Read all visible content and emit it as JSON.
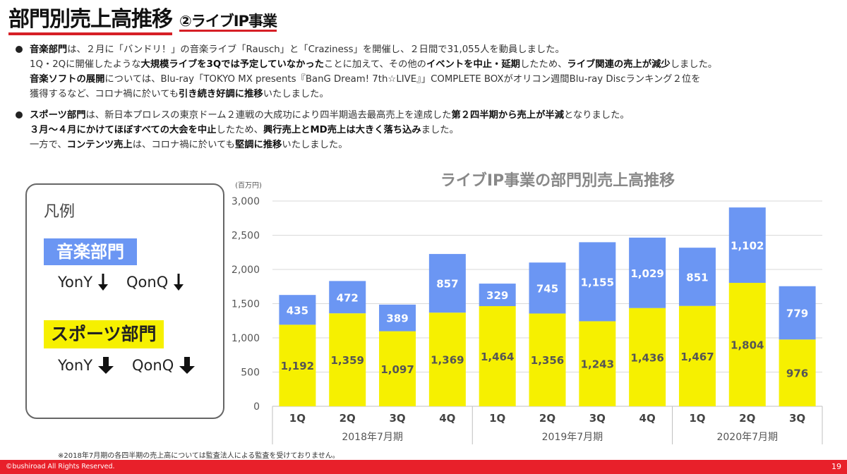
{
  "header": {
    "title": "部門別売上高推移",
    "subtitle": "②ライブIP事業"
  },
  "bullets": [
    {
      "lines": [
        [
          {
            "t": "音楽部門",
            "b": true
          },
          {
            "t": "は、２月に「バンドリ！」の音楽ライブ「Rausch」と「Craziness」を開催し、２日間で31,055人を動員しました。"
          }
        ],
        [
          {
            "t": "1Q・2Qに開催したような"
          },
          {
            "t": "大規模ライブを3Qでは予定していなかった",
            "b": true
          },
          {
            "t": "ことに加えて、その他の"
          },
          {
            "t": "イベントを中止・延期",
            "b": true
          },
          {
            "t": "したため、"
          },
          {
            "t": "ライブ関連の売上が減少",
            "b": true
          },
          {
            "t": "しました。"
          }
        ],
        [
          {
            "t": "音楽ソフトの展開",
            "b": true
          },
          {
            "t": "については、Blu-ray「TOKYO MX presents『BanG Dream! 7th☆LIVE』」COMPLETE BOXがオリコン週間Blu-ray Discランキング２位を"
          }
        ],
        [
          {
            "t": "獲得するなど、コロナ禍に於いても"
          },
          {
            "t": "引き続き好調に推移",
            "b": true
          },
          {
            "t": "いたしました。"
          }
        ]
      ]
    },
    {
      "lines": [
        [
          {
            "t": "スポーツ部門",
            "b": true
          },
          {
            "t": "は、新日本プロレスの東京ドーム２連戦の大成功により四半期過去最高売上を達成した"
          },
          {
            "t": "第２四半期から売上が半減",
            "b": true
          },
          {
            "t": "となりました。"
          }
        ],
        [
          {
            "t": "３月～４月にかけてほぼすべての大会を中止",
            "b": true
          },
          {
            "t": "したため、"
          },
          {
            "t": "興行売上とMD売上は大きく落ち込み",
            "b": true
          },
          {
            "t": "ました。"
          }
        ],
        [
          {
            "t": "一方で、"
          },
          {
            "t": "コンテンツ売上",
            "b": true
          },
          {
            "t": "は、コロナ禍に於いても"
          },
          {
            "t": "堅調に推移",
            "b": true
          },
          {
            "t": "いたしました。"
          }
        ]
      ]
    }
  ],
  "legend": {
    "title": "凡例",
    "music_label": "音楽部門",
    "sports_label": "スポーツ部門",
    "yony": "YonY",
    "qonq": "QonQ"
  },
  "chart_title": "ライブIP事業の部門別売上高推移",
  "footnote": "※2018年7月期の各四半期の売上高については監査法人による監査を受けておりません。",
  "footer": {
    "copyright": "©bushiroad All Rights Reserved.",
    "page": "19"
  },
  "colors": {
    "music": "#6b96f3",
    "sports": "#f6f000",
    "accent_red": "#e8202a",
    "grid": "#d9d9d9",
    "title_gray": "#888888"
  },
  "chart_data": {
    "type": "bar",
    "stacked": true,
    "title": "ライブIP事業の部門別売上高推移",
    "unit_label": "(百万円)",
    "categories": [
      "1Q",
      "2Q",
      "3Q",
      "4Q",
      "1Q",
      "2Q",
      "3Q",
      "4Q",
      "1Q",
      "2Q",
      "3Q"
    ],
    "groups": [
      {
        "label": "2018年7月期",
        "count": 4
      },
      {
        "label": "2019年7月期",
        "count": 4
      },
      {
        "label": "2020年7月期",
        "count": 3
      }
    ],
    "series": [
      {
        "name": "スポーツ部門",
        "color": "#f6f000",
        "values": [
          1192,
          1359,
          1097,
          1369,
          1464,
          1356,
          1243,
          1436,
          1467,
          1804,
          976
        ]
      },
      {
        "name": "音楽部門",
        "color": "#6b96f3",
        "values": [
          435,
          472,
          389,
          857,
          329,
          745,
          1155,
          1029,
          851,
          1102,
          779
        ]
      }
    ],
    "ylim": [
      0,
      3000
    ],
    "yticks": [
      0,
      500,
      1000,
      1500,
      2000,
      2500,
      3000
    ],
    "grid": true,
    "legend": "separate box on left"
  }
}
